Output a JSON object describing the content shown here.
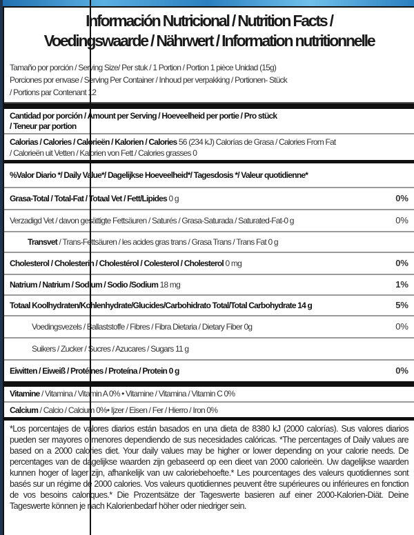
{
  "title_line1": "Información Nutricional / Nutrition Facts /",
  "title_line2": "Voedingswaarde / Nährwert / Information nutritionnelle",
  "serving_size": "Tamaño por porción / Serving Size/ Per stuk   / 1 Portion  /  Portion  1 pièce  Unidad (15g)",
  "servings_line1": "Porciones por envase / Serving Per Container / Inhoud per verpakking / Portionen- Stück",
  "servings_line2": "/ Portions par Contenant  12",
  "amount_line1": "Cantidad por porción / Amount per Serving / Hoeveelheid per portie / Pro stück",
  "amount_line2": "/ Teneur par portion",
  "calories": {
    "label": "Calorias / Calories / Calorieën / Kalorien / Calories",
    "value": " 56 (234 kJ) Calorías de Grasa / Calories From Fat",
    "line2": "/ Calorieën uit Vetten / Kalorien von Fett / Calories grasses   0"
  },
  "daily_value_header": "%Valor Diario */ Daily Value*/ Dagelijkse Hoeveelheid*/ Tagesdosis */ Valeur quotidienne*",
  "nutrients": [
    {
      "label": "Grasa-Total / Total-Fat / Totaal Vet / Fett/Lipides",
      "amount": "  0 g",
      "pct": "0%"
    },
    {
      "label": "",
      "amount": "Verzadigd Vet / davon gesättigte Fettsäuren / Saturés / Grasa-Saturada / Saturated-Fat-0 g",
      "pct": "0%"
    },
    {
      "label": "Transvet",
      "amount": " / Trans-Fettsäuren / les acides gras trans / Grasa Trans / Trans Fat 0 g",
      "pct": ""
    },
    {
      "label": "Cholesterol / Cholesterin / Cholestérol / Colesterol / Cholesterol",
      "amount": " 0 mg",
      "pct": "0%"
    },
    {
      "label": "Natrium / Natrium / Sodium / Sodio /Sodium",
      "amount": " 18 mg",
      "pct": "1%"
    },
    {
      "label": "Totaal Koolhydraten/Kohlenhydrate/Glucides/Carbohidrato Total/Total Carbohydrate 14 g",
      "amount": "",
      "pct": "5%"
    },
    {
      "label": "",
      "amount": "Voedingsvezels / Ballaststoffe / Fibres  / Fibra Dietaria / Dietary Fiber 0g",
      "pct": "0%"
    },
    {
      "label": "",
      "amount": "Suikers / Zucker / Sucres  / Azucares / Sugars  11 g",
      "pct": ""
    },
    {
      "label": "Eiwitten / Eiweiß / Protéines / Proteína / Protein 0 g",
      "amount": "",
      "pct": "0%"
    }
  ],
  "vitamins": {
    "label": "Vitamine",
    "text": " / Vitamina / Vitamin A 0%  •  Vitamine / Vitamina / Vitamin C 0%"
  },
  "minerals": {
    "label": "Calcium",
    "text": " / Calcio / Calcium 0%•  Ijzer / Eisen / Fer / Hierro / Iron 0%"
  },
  "footnote": "*Los porcentajes de valores diarios están basados en una dieta de  8380 kJ (2000 calorías). Sus valores diarios pueden ser mayores o menores dependiendo de sus necesidades calóricas. *The percentages of Daily values are based on a 2000 calories diet. Your daily values may be higher or lower depending on your calorie needs. De percentages van de dagelijkse waarden zijn gebaseerd op een dieet van 2000 calorieën. Uw dagelijkse waarden kunnen hoger of lager zijn, afhankelijk van uw caloriebehoefte.* Les pourcentages des valeurs quotidiennes sont basés sur un régime de 2000 calories. Vos valeurs quotidiennes peuvent être supérieures ou inférieures en fonction de vos besoins caloriques.* Die Prozentsätze der Tageswerte basieren auf einer 2000-Kalorien-Diät. Deine Tageswerte können je nach Kalorienbedarf höher oder niedriger sein."
}
